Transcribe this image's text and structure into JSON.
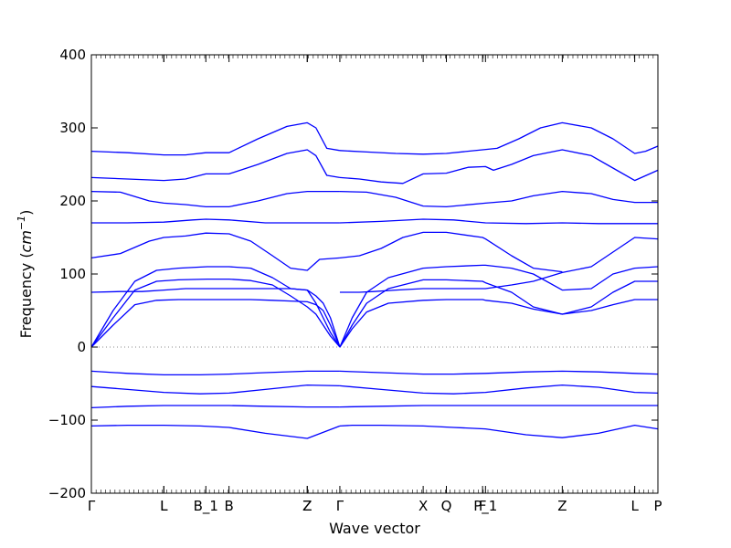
{
  "chart_data": {
    "type": "line",
    "title": "",
    "xlabel": "Wave vector",
    "ylabel": "Frequency (cm⁻¹)",
    "ylabel_text": "Frequency (",
    "ylabel_unit_base": "cm",
    "ylabel_unit_exp": "−1",
    "ylabel_close": ")",
    "ylim": [
      -200,
      400
    ],
    "yticks": [
      -200,
      -100,
      0,
      100,
      200,
      300,
      400
    ],
    "xlim": [
      0,
      7.82
    ],
    "grid": false,
    "legend": "none",
    "line_color": "#0000ff",
    "zero_line_color": "#888888",
    "high_symmetry_points": [
      {
        "label": "Γ",
        "x": 0.0
      },
      {
        "label": "L",
        "x": 1.0
      },
      {
        "label": "L",
        "x": 1.0
      },
      {
        "label": "B_1",
        "x": 1.58
      },
      {
        "label": "B",
        "x": 1.9
      },
      {
        "label": "Z",
        "x": 2.98
      },
      {
        "label": "Z",
        "x": 2.98
      },
      {
        "label": "Γ",
        "x": 3.43
      },
      {
        "label": "X",
        "x": 4.58
      },
      {
        "label": "Q",
        "x": 4.9
      },
      {
        "label": "F",
        "x": 5.4
      },
      {
        "label": "P_1",
        "x": 5.44
      },
      {
        "label": "Z",
        "x": 6.5
      },
      {
        "label": "L",
        "x": 7.5
      },
      {
        "label": "P",
        "x": 7.82
      }
    ],
    "series": [
      {
        "x": [
          0,
          0.4,
          0.7,
          1.0,
          1.3,
          1.6,
          1.9,
          2.2,
          2.5,
          2.75,
          2.98,
          3.1,
          3.2,
          3.3,
          3.43
        ],
        "values": [
          75,
          76,
          76,
          78,
          80,
          80,
          80,
          80,
          80,
          80,
          78,
          70,
          60,
          40,
          0
        ]
      },
      {
        "x": [
          0,
          0.3,
          0.6,
          0.9,
          1.2,
          1.6,
          1.9,
          2.2,
          2.5,
          2.75,
          2.98,
          3.1,
          3.2,
          3.3,
          3.43
        ],
        "values": [
          0,
          30,
          58,
          64,
          65,
          65,
          65,
          65,
          64,
          63,
          62,
          58,
          50,
          30,
          0
        ]
      },
      {
        "x": [
          0,
          0.3,
          0.6,
          0.9,
          1.2,
          1.6,
          1.9,
          2.2,
          2.5,
          2.75,
          2.98,
          3.1,
          3.2,
          3.3,
          3.43
        ],
        "values": [
          0,
          40,
          78,
          90,
          92,
          93,
          93,
          91,
          85,
          70,
          55,
          45,
          30,
          15,
          0
        ]
      },
      {
        "x": [
          0,
          0.3,
          0.6,
          0.9,
          1.2,
          1.6,
          1.9,
          2.2,
          2.5,
          2.75,
          2.98,
          3.1,
          3.2,
          3.3,
          3.43
        ],
        "values": [
          0,
          50,
          90,
          105,
          108,
          110,
          110,
          108,
          95,
          80,
          78,
          60,
          40,
          20,
          0
        ]
      },
      {
        "x": [
          0,
          0.4,
          0.8,
          1.0,
          1.3,
          1.58,
          1.9,
          2.2,
          2.5,
          2.75,
          2.98,
          3.15,
          3.43
        ],
        "values": [
          122,
          128,
          145,
          150,
          152,
          156,
          155,
          145,
          125,
          108,
          105,
          120,
          122
        ]
      },
      {
        "x": [
          0,
          0.5,
          1.0,
          1.4,
          1.58,
          1.9,
          2.4,
          2.98,
          3.43
        ],
        "values": [
          170,
          170,
          171,
          174,
          175,
          174,
          170,
          170,
          170
        ]
      },
      {
        "x": [
          0,
          0.4,
          0.8,
          1.0,
          1.3,
          1.58,
          1.9,
          2.3,
          2.7,
          2.98,
          3.43
        ],
        "values": [
          213,
          212,
          200,
          197,
          195,
          192,
          192,
          200,
          210,
          213,
          213
        ]
      },
      {
        "x": [
          0,
          0.5,
          1.0,
          1.3,
          1.58,
          1.9,
          2.3,
          2.7,
          2.98,
          3.1,
          3.25,
          3.43
        ],
        "values": [
          232,
          230,
          228,
          230,
          237,
          237,
          250,
          265,
          270,
          262,
          235,
          232
        ]
      },
      {
        "x": [
          0,
          0.5,
          1.0,
          1.3,
          1.58,
          1.9,
          2.3,
          2.7,
          2.98,
          3.1,
          3.25,
          3.43
        ],
        "values": [
          268,
          266,
          263,
          263,
          266,
          266,
          285,
          302,
          307,
          300,
          272,
          269
        ]
      },
      {
        "x": [
          0,
          0.5,
          1.0,
          1.5,
          1.9,
          2.4,
          2.98,
          3.43
        ],
        "values": [
          -33,
          -36,
          -38,
          -38,
          -37,
          -35,
          -33,
          -33
        ]
      },
      {
        "x": [
          0,
          0.5,
          1.0,
          1.5,
          1.9,
          2.4,
          2.98,
          3.43
        ],
        "values": [
          -54,
          -58,
          -62,
          -64,
          -63,
          -58,
          -52,
          -53
        ]
      },
      {
        "x": [
          0,
          0.5,
          1.0,
          1.5,
          1.9,
          2.4,
          2.98,
          3.43
        ],
        "values": [
          -83,
          -81,
          -80,
          -80,
          -80,
          -81,
          -82,
          -82
        ]
      },
      {
        "x": [
          0,
          0.5,
          1.0,
          1.5,
          1.9,
          2.4,
          2.98,
          3.43
        ],
        "values": [
          -108,
          -107,
          -107,
          -108,
          -110,
          -118,
          -125,
          -108
        ]
      },
      {
        "x": [
          3.43,
          3.6,
          3.8,
          4.1,
          4.58,
          4.9,
          5.4,
          5.44,
          5.8,
          6.1,
          6.5,
          6.9,
          7.2,
          7.5,
          7.82
        ],
        "values": [
          0,
          25,
          48,
          60,
          64,
          65,
          65,
          64,
          60,
          52,
          45,
          50,
          58,
          65,
          65
        ]
      },
      {
        "x": [
          3.43,
          3.6,
          3.8,
          4.1,
          4.58,
          4.9,
          5.4,
          5.44,
          5.8,
          6.1,
          6.5,
          6.9,
          7.2,
          7.5,
          7.82
        ],
        "values": [
          0,
          30,
          60,
          80,
          92,
          92,
          90,
          88,
          75,
          55,
          45,
          55,
          75,
          90,
          90
        ]
      },
      {
        "x": [
          3.43,
          3.6,
          3.8,
          4.1,
          4.58,
          4.9,
          5.4,
          5.44,
          5.8,
          6.1,
          6.5,
          6.9,
          7.2,
          7.5,
          7.82
        ],
        "values": [
          0,
          40,
          75,
          95,
          108,
          110,
          112,
          112,
          108,
          100,
          78,
          80,
          100,
          108,
          110
        ]
      },
      {
        "x": [
          3.43,
          3.7,
          3.9,
          4.2,
          4.58,
          4.9,
          5.4,
          5.44,
          5.8,
          6.1,
          6.5,
          6.9,
          7.2,
          7.5,
          7.82
        ],
        "values": [
          75,
          75,
          76,
          78,
          80,
          80,
          80,
          80,
          85,
          90,
          102,
          110,
          130,
          150,
          148
        ]
      },
      {
        "x": [
          3.43,
          3.7,
          4.0,
          4.3,
          4.58,
          4.9,
          5.4,
          5.44,
          5.8,
          6.1,
          6.5
        ],
        "values": [
          122,
          125,
          135,
          150,
          157,
          157,
          150,
          148,
          125,
          108,
          103
        ]
      },
      {
        "x": [
          3.43,
          4.0,
          4.58,
          5.0,
          5.44,
          6.0,
          6.5,
          7.0,
          7.5,
          7.82
        ],
        "values": [
          170,
          172,
          175,
          174,
          170,
          169,
          170,
          169,
          169,
          169
        ]
      },
      {
        "x": [
          3.43,
          3.8,
          4.2,
          4.58,
          4.9,
          5.44,
          5.8,
          6.1,
          6.5,
          6.9,
          7.2,
          7.5,
          7.82
        ],
        "values": [
          213,
          212,
          205,
          193,
          192,
          197,
          200,
          207,
          213,
          210,
          202,
          198,
          198
        ]
      },
      {
        "x": [
          3.43,
          3.7,
          4.0,
          4.3,
          4.58,
          4.9,
          5.2,
          5.44,
          5.55,
          5.8,
          6.1,
          6.5,
          6.9,
          7.2,
          7.5,
          7.82
        ],
        "values": [
          232,
          230,
          226,
          224,
          237,
          238,
          246,
          247,
          242,
          250,
          262,
          270,
          262,
          245,
          228,
          242
        ]
      },
      {
        "x": [
          3.43,
          3.8,
          4.2,
          4.58,
          4.9,
          5.4,
          5.6,
          5.9,
          6.2,
          6.5,
          6.9,
          7.2,
          7.5,
          7.65,
          7.82
        ],
        "values": [
          269,
          267,
          265,
          264,
          265,
          270,
          272,
          285,
          300,
          307,
          300,
          285,
          265,
          268,
          275
        ]
      },
      {
        "x": [
          3.43,
          4.0,
          4.58,
          5.0,
          5.44,
          6.0,
          6.5,
          7.0,
          7.5,
          7.82
        ],
        "values": [
          -33,
          -35,
          -37,
          -37,
          -36,
          -34,
          -33,
          -34,
          -36,
          -37
        ]
      },
      {
        "x": [
          3.43,
          4.0,
          4.58,
          5.0,
          5.44,
          6.0,
          6.5,
          7.0,
          7.5,
          7.82
        ],
        "values": [
          -53,
          -58,
          -63,
          -64,
          -62,
          -56,
          -52,
          -55,
          -62,
          -63
        ]
      },
      {
        "x": [
          3.43,
          4.0,
          4.58,
          5.0,
          5.44,
          6.0,
          6.5,
          7.0,
          7.5,
          7.82
        ],
        "values": [
          -82,
          -81,
          -80,
          -80,
          -80,
          -80,
          -80,
          -80,
          -80,
          -80
        ]
      },
      {
        "x": [
          3.43,
          3.6,
          4.0,
          4.58,
          5.0,
          5.44,
          6.0,
          6.5,
          7.0,
          7.5,
          7.82
        ],
        "values": [
          -108,
          -107,
          -107,
          -108,
          -110,
          -112,
          -120,
          -124,
          -118,
          -107,
          -112
        ]
      }
    ]
  }
}
